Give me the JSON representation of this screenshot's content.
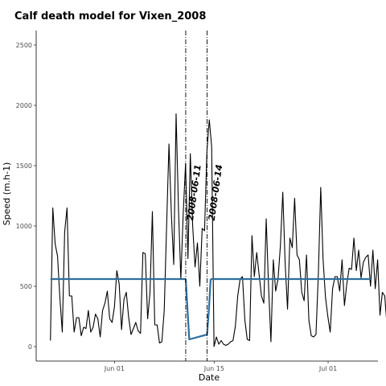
{
  "chart_data": {
    "type": "line",
    "title": "Calf death model for Vixen_2008",
    "xlabel": "Date",
    "ylabel": "Speed (m.h-1)",
    "ylim": [
      -120,
      2620
    ],
    "xlim": [
      "2008-05-21",
      "2008-07-08"
    ],
    "grid": false,
    "x_ticks": [
      {
        "date": "2008-06-01",
        "label": "Jun 01"
      },
      {
        "date": "2008-06-15",
        "label": "Jun 15"
      },
      {
        "date": "2008-07-01",
        "label": "Jul 01"
      }
    ],
    "y_ticks": [
      0,
      500,
      1000,
      1500,
      2000,
      2500
    ],
    "start_date": "2008-05-23",
    "series": [
      {
        "style": "observed",
        "color": "#000000",
        "step_days": 0.333,
        "values": [
          50,
          1150,
          850,
          750,
          400,
          120,
          950,
          1150,
          420,
          420,
          120,
          240,
          240,
          90,
          160,
          150,
          300,
          120,
          160,
          270,
          230,
          80,
          300,
          360,
          460,
          230,
          200,
          330,
          630,
          520,
          140,
          390,
          450,
          240,
          100,
          150,
          200,
          130,
          110,
          780,
          770,
          230,
          450,
          1120,
          180,
          180,
          30,
          40,
          300,
          1000,
          1680,
          1100,
          680,
          1930,
          1150,
          560,
          1100,
          1520,
          730,
          1600,
          1000,
          660,
          860,
          500,
          980,
          960,
          1620,
          1880,
          1660,
          0,
          80,
          20,
          50,
          20,
          10,
          20,
          40,
          50,
          170,
          420,
          560,
          580,
          220,
          60,
          50,
          920,
          580,
          780,
          600,
          420,
          360,
          1060,
          500,
          40,
          720,
          460,
          560,
          840,
          1280,
          690,
          310,
          900,
          820,
          1230,
          760,
          720,
          450,
          380,
          760,
          220,
          90,
          80,
          100,
          600,
          1320,
          720,
          410,
          250,
          120,
          480,
          580,
          580,
          460,
          720,
          340,
          520,
          650,
          640,
          900,
          630,
          800,
          570,
          700,
          740,
          760,
          500,
          800,
          480,
          720,
          260,
          450,
          420,
          160,
          280,
          450,
          470,
          740,
          290,
          400,
          850,
          550,
          270
        ]
      },
      {
        "style": "model",
        "color": "#2e6e9e",
        "segments": [
          {
            "x": [
              "2008-05-23",
              "2008-06-11"
            ],
            "y": [
              560,
              560
            ]
          },
          {
            "x": [
              "2008-06-11",
              "2008-06-11T12:00",
              "2008-06-14",
              "2008-06-14T06:00",
              "2008-06-14T12:00"
            ],
            "y": [
              560,
              60,
              100,
              300,
              560
            ]
          },
          {
            "x": [
              "2008-06-14T12:00",
              "2008-07-07"
            ],
            "y": [
              560,
              560
            ]
          }
        ]
      }
    ],
    "events": [
      {
        "date": "2008-06-11",
        "label": "2008-06-11"
      },
      {
        "date": "2008-06-14",
        "label": "2008-06-14"
      }
    ]
  }
}
